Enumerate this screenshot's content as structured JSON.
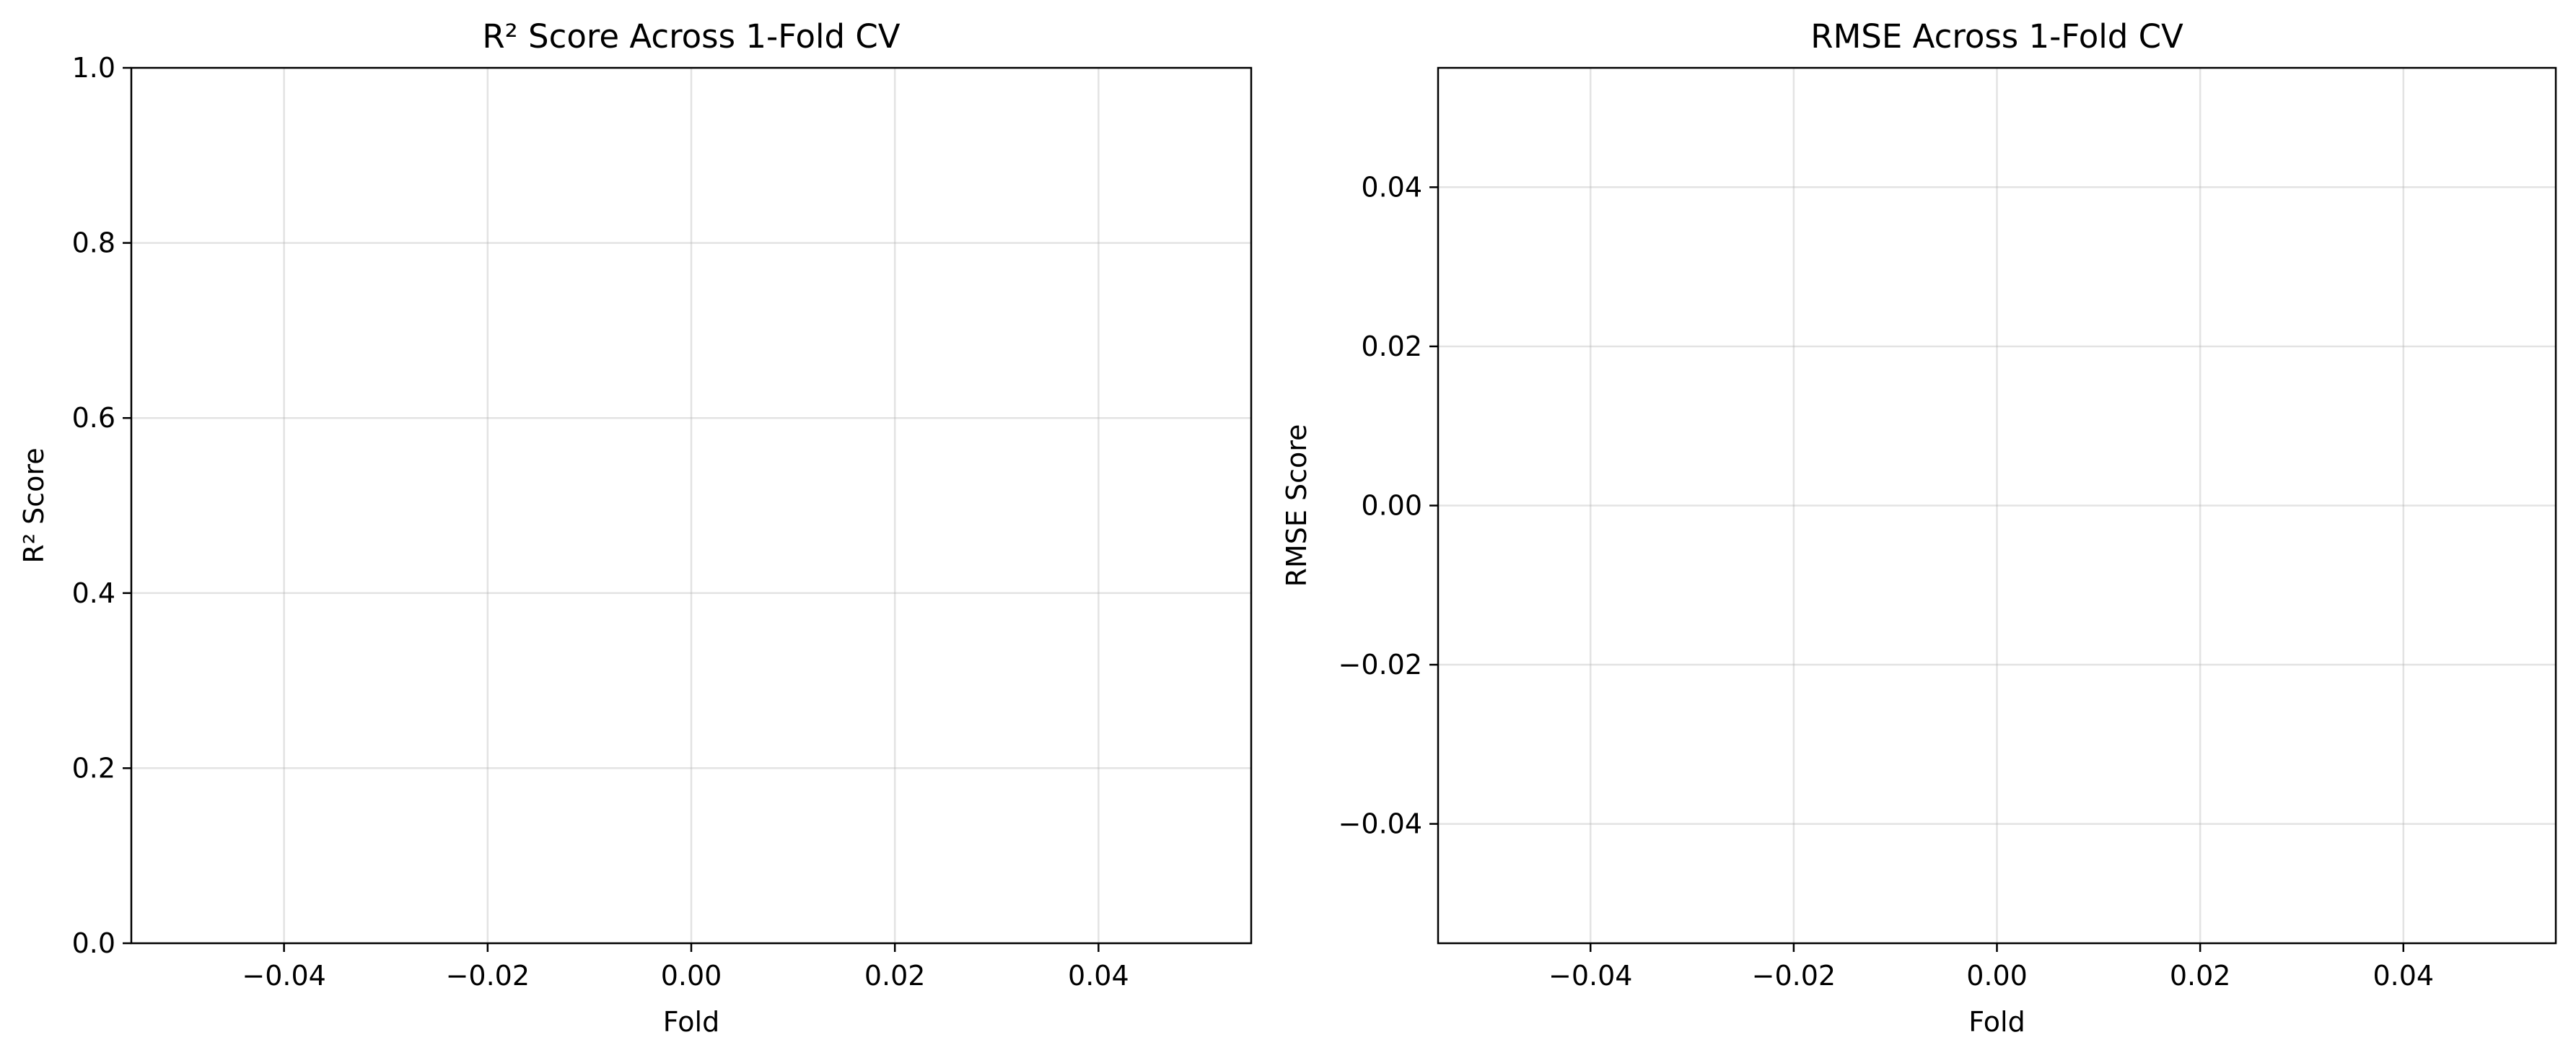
{
  "chart_data": [
    {
      "type": "line",
      "title": "R² Score Across 1-Fold CV",
      "xlabel": "Fold",
      "ylabel": "R² Score",
      "xlim": [
        -0.055,
        0.055
      ],
      "ylim": [
        0.0,
        1.0
      ],
      "x_ticks": [
        -0.04,
        -0.02,
        0.0,
        0.02,
        0.04
      ],
      "x_tick_labels": [
        "−0.04",
        "−0.02",
        "0.00",
        "0.02",
        "0.04"
      ],
      "y_ticks": [
        0.0,
        0.2,
        0.4,
        0.6,
        0.8,
        1.0
      ],
      "y_tick_labels": [
        "0.0",
        "0.2",
        "0.4",
        "0.6",
        "0.8",
        "1.0"
      ],
      "grid": true,
      "series": []
    },
    {
      "type": "line",
      "title": "RMSE Across 1-Fold CV",
      "xlabel": "Fold",
      "ylabel": "RMSE Score",
      "xlim": [
        -0.055,
        0.055
      ],
      "ylim": [
        -0.055,
        0.055
      ],
      "x_ticks": [
        -0.04,
        -0.02,
        0.0,
        0.02,
        0.04
      ],
      "x_tick_labels": [
        "−0.04",
        "−0.02",
        "0.00",
        "0.02",
        "0.04"
      ],
      "y_ticks": [
        -0.04,
        -0.02,
        0.0,
        0.02,
        0.04
      ],
      "y_tick_labels": [
        "−0.04",
        "−0.02",
        "0.00",
        "0.02",
        "0.04"
      ],
      "grid": true,
      "series": []
    }
  ]
}
